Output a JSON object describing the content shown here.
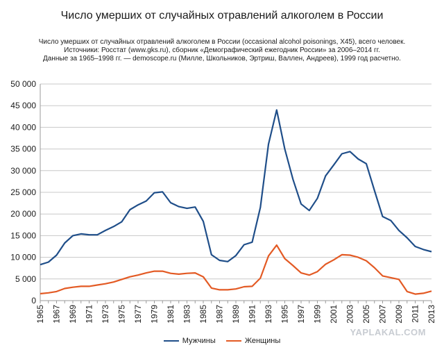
{
  "page": {
    "title": "Число умерших от случайных отравлений алкоголем в России",
    "subtitle_lines": [
      "Число умерших от случайных отравлений алкоголем в России (occasional alcohol poisonings, X45), всего человек.",
      "Источники: Росстат (www.gks.ru), сборник «Демографический ежегодник России» за 2006–2014 гг.",
      "Данные за 1965–1998 гг. — demoscope.ru (Милле, Школьников, Эртриш, Валлен, Андреев), 1999 год расчетно."
    ],
    "watermark": "YAPLAKAL.COM"
  },
  "chart_data": {
    "type": "line",
    "title": "Число умерших от случайных отравлений алкоголем в России",
    "xlabel": "",
    "ylabel": "",
    "ylim": [
      0,
      50000
    ],
    "yticks": [
      0,
      5000,
      10000,
      15000,
      20000,
      25000,
      30000,
      35000,
      40000,
      45000,
      50000
    ],
    "ytick_labels": [
      "0",
      "5 000",
      "10 000",
      "15 000",
      "20 000",
      "25 000",
      "30 000",
      "35 000",
      "40 000",
      "45 000",
      "50 000"
    ],
    "x": [
      1965,
      1966,
      1967,
      1968,
      1969,
      1970,
      1971,
      1972,
      1973,
      1974,
      1975,
      1976,
      1977,
      1978,
      1979,
      1980,
      1981,
      1982,
      1983,
      1984,
      1985,
      1986,
      1987,
      1988,
      1989,
      1990,
      1991,
      1992,
      1993,
      1994,
      1995,
      1996,
      1997,
      1998,
      1999,
      2000,
      2001,
      2002,
      2003,
      2004,
      2005,
      2006,
      2007,
      2008,
      2009,
      2010,
      2011,
      2012,
      2013
    ],
    "xtick_labels": [
      "1965",
      "1967",
      "1969",
      "1971",
      "1973",
      "1975",
      "1977",
      "1979",
      "1981",
      "1983",
      "1985",
      "1987",
      "1989",
      "1991",
      "1993",
      "1995",
      "1997",
      "1999",
      "2001",
      "2003",
      "2005",
      "2007",
      "2009",
      "2011",
      "2013"
    ],
    "grid": true,
    "legend_position": "bottom",
    "series": [
      {
        "name": "Мужчины",
        "color": "#1f4e89",
        "values": [
          8300,
          8900,
          10500,
          13300,
          15000,
          15400,
          15200,
          15200,
          16200,
          17100,
          18200,
          21000,
          22100,
          23000,
          24900,
          25100,
          22600,
          21700,
          21300,
          21600,
          18300,
          10600,
          9300,
          9000,
          10400,
          12900,
          13500,
          21500,
          36100,
          44000,
          35000,
          28000,
          22300,
          20800,
          23600,
          28800,
          31300,
          33900,
          34400,
          32700,
          31600,
          25400,
          19400,
          18500,
          16200,
          14500,
          12500,
          11800,
          11300
        ]
      },
      {
        "name": "Женщины",
        "color": "#e35a24",
        "values": [
          1600,
          1800,
          2100,
          2800,
          3100,
          3300,
          3300,
          3600,
          3900,
          4300,
          4900,
          5500,
          5900,
          6400,
          6800,
          6800,
          6300,
          6100,
          6300,
          6400,
          5500,
          2900,
          2500,
          2500,
          2700,
          3200,
          3300,
          5200,
          10300,
          12800,
          9700,
          8100,
          6400,
          5900,
          6700,
          8400,
          9400,
          10600,
          10500,
          10000,
          9200,
          7600,
          5700,
          5300,
          4900,
          2100,
          1500,
          1700,
          2200
        ]
      }
    ]
  }
}
